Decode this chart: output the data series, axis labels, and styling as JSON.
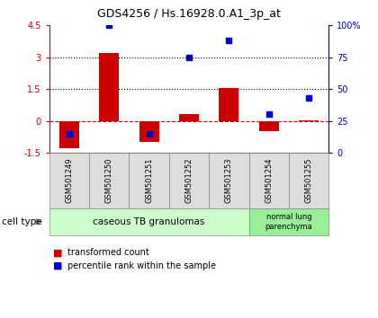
{
  "title": "GDS4256 / Hs.16928.0.A1_3p_at",
  "samples": [
    "GSM501249",
    "GSM501250",
    "GSM501251",
    "GSM501252",
    "GSM501253",
    "GSM501254",
    "GSM501255"
  ],
  "red_bars": [
    -1.3,
    3.2,
    -1.0,
    0.3,
    1.55,
    -0.5,
    0.02
  ],
  "blue_squares_pct": [
    15,
    100,
    15,
    75,
    88,
    30,
    43
  ],
  "ylim_left": [
    -1.5,
    4.5
  ],
  "ylim_right": [
    0,
    100
  ],
  "yticks_left": [
    -1.5,
    0,
    1.5,
    3,
    4.5
  ],
  "yticks_right": [
    0,
    25,
    50,
    75,
    100
  ],
  "ytick_labels_left": [
    "-1.5",
    "0",
    "1.5",
    "3",
    "4.5"
  ],
  "ytick_labels_right": [
    "0",
    "25",
    "50",
    "75",
    "100%"
  ],
  "hlines_dotted": [
    1.5,
    3.0
  ],
  "hline_dashed": 0.0,
  "left_ycolor": "#cc0000",
  "right_ycolor": "#0000cc",
  "bar_color": "#cc0000",
  "square_color": "#0000cc",
  "group1_count": 5,
  "group2_count": 2,
  "group1_label": "caseous TB granulomas",
  "group2_label": "normal lung\nparenchyma",
  "group1_color": "#ccffcc",
  "group2_color": "#99ee99",
  "cell_type_label": "cell type",
  "legend1_label": "transformed count",
  "legend2_label": "percentile rank within the sample",
  "sample_box_color": "#dddddd",
  "bar_width": 0.5
}
